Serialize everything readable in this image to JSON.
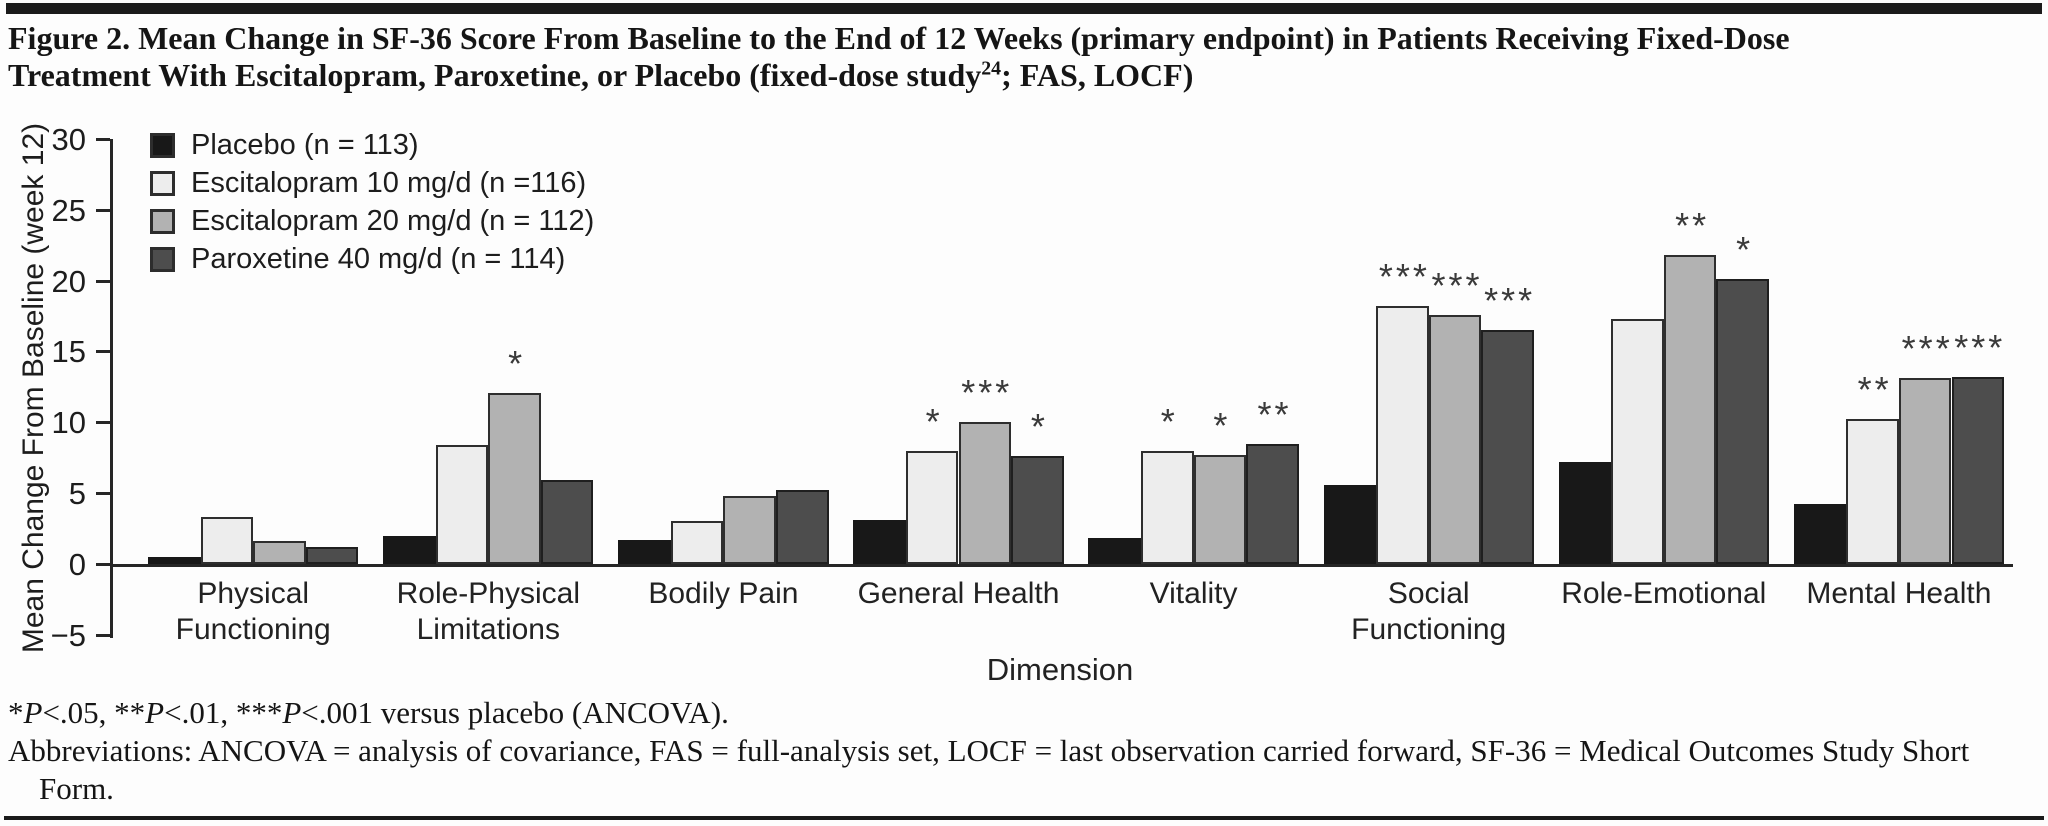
{
  "figure": {
    "title_text1": "Figure 2. Mean Change in SF-36 Score From Baseline to the End of 12 Weeks (primary endpoint) in Patients Receiving Fixed-Dose\nTreatment With Escitalopram, Paroxetine, or Placebo (fixed-dose study",
    "title_sup": "24",
    "title_text2": "; FAS, LOCF)"
  },
  "chart_data": {
    "type": "bar",
    "title": "Figure 2. Mean Change in SF-36 Score From Baseline to the End of 12 Weeks (primary endpoint) in Patients Receiving Fixed-Dose Treatment With Escitalopram, Paroxetine, or Placebo (fixed-dose study24; FAS, LOCF)",
    "xlabel": "Dimension",
    "ylabel": "Mean Change From Baseline (week 12)",
    "ylim": [
      -5,
      30
    ],
    "yticks": [
      30,
      25,
      20,
      15,
      10,
      5,
      0,
      -5
    ],
    "grid": false,
    "legend_position": "top-left",
    "categories": [
      "Physical\nFunctioning",
      "Role-Physical\nLimitations",
      "Bodily Pain",
      "General Health",
      "Vitality",
      "Social\nFunctioning",
      "Role-Emotional",
      "Mental Health"
    ],
    "series": [
      {
        "name": "Placebo (n = 113)",
        "color": "#181818",
        "border": "#181818",
        "values": [
          0.5,
          2.0,
          1.7,
          3.1,
          1.8,
          5.6,
          7.2,
          4.2
        ],
        "sig": [
          "",
          "",
          "",
          "",
          "",
          "",
          "",
          ""
        ]
      },
      {
        "name": "Escitalopram 10 mg/d (n =116)",
        "color": "#ededed",
        "border": "#2e2e2e",
        "values": [
          3.3,
          8.4,
          3.0,
          8.0,
          8.0,
          18.2,
          17.3,
          10.2
        ],
        "sig": [
          "",
          "",
          "",
          "*",
          "*",
          "***",
          "",
          "**"
        ]
      },
      {
        "name": "Escitalopram 20 mg/d (n = 112)",
        "color": "#b2b2b2",
        "border": "#2e2e2e",
        "values": [
          1.6,
          12.1,
          4.8,
          10.0,
          7.7,
          17.6,
          21.8,
          13.1
        ],
        "sig": [
          "",
          "*",
          "",
          "***",
          "*",
          "***",
          "**",
          "***"
        ]
      },
      {
        "name": "Paroxetine 40 mg/d (n = 114)",
        "color": "#4d4d4d",
        "border": "#1f1f1f",
        "values": [
          1.2,
          5.9,
          5.2,
          7.6,
          8.5,
          16.5,
          20.1,
          13.2
        ],
        "sig": [
          "",
          "",
          "",
          "*",
          "**",
          "***",
          "*",
          "***"
        ]
      }
    ]
  },
  "footnotes": {
    "significance_tokens": [
      {
        "text": "*"
      },
      {
        "text": "P",
        "italic": true
      },
      {
        "text": "<.05, **"
      },
      {
        "text": "P",
        "italic": true
      },
      {
        "text": "<.01, ***"
      },
      {
        "text": "P",
        "italic": true
      },
      {
        "text": "<.001 versus placebo (ANCOVA)."
      }
    ],
    "abbreviations": "Abbreviations: ANCOVA = analysis of covariance, FAS = full-analysis set, LOCF = last observation carried forward, SF-36 = Medical Outcomes Study Short\n    Form."
  }
}
